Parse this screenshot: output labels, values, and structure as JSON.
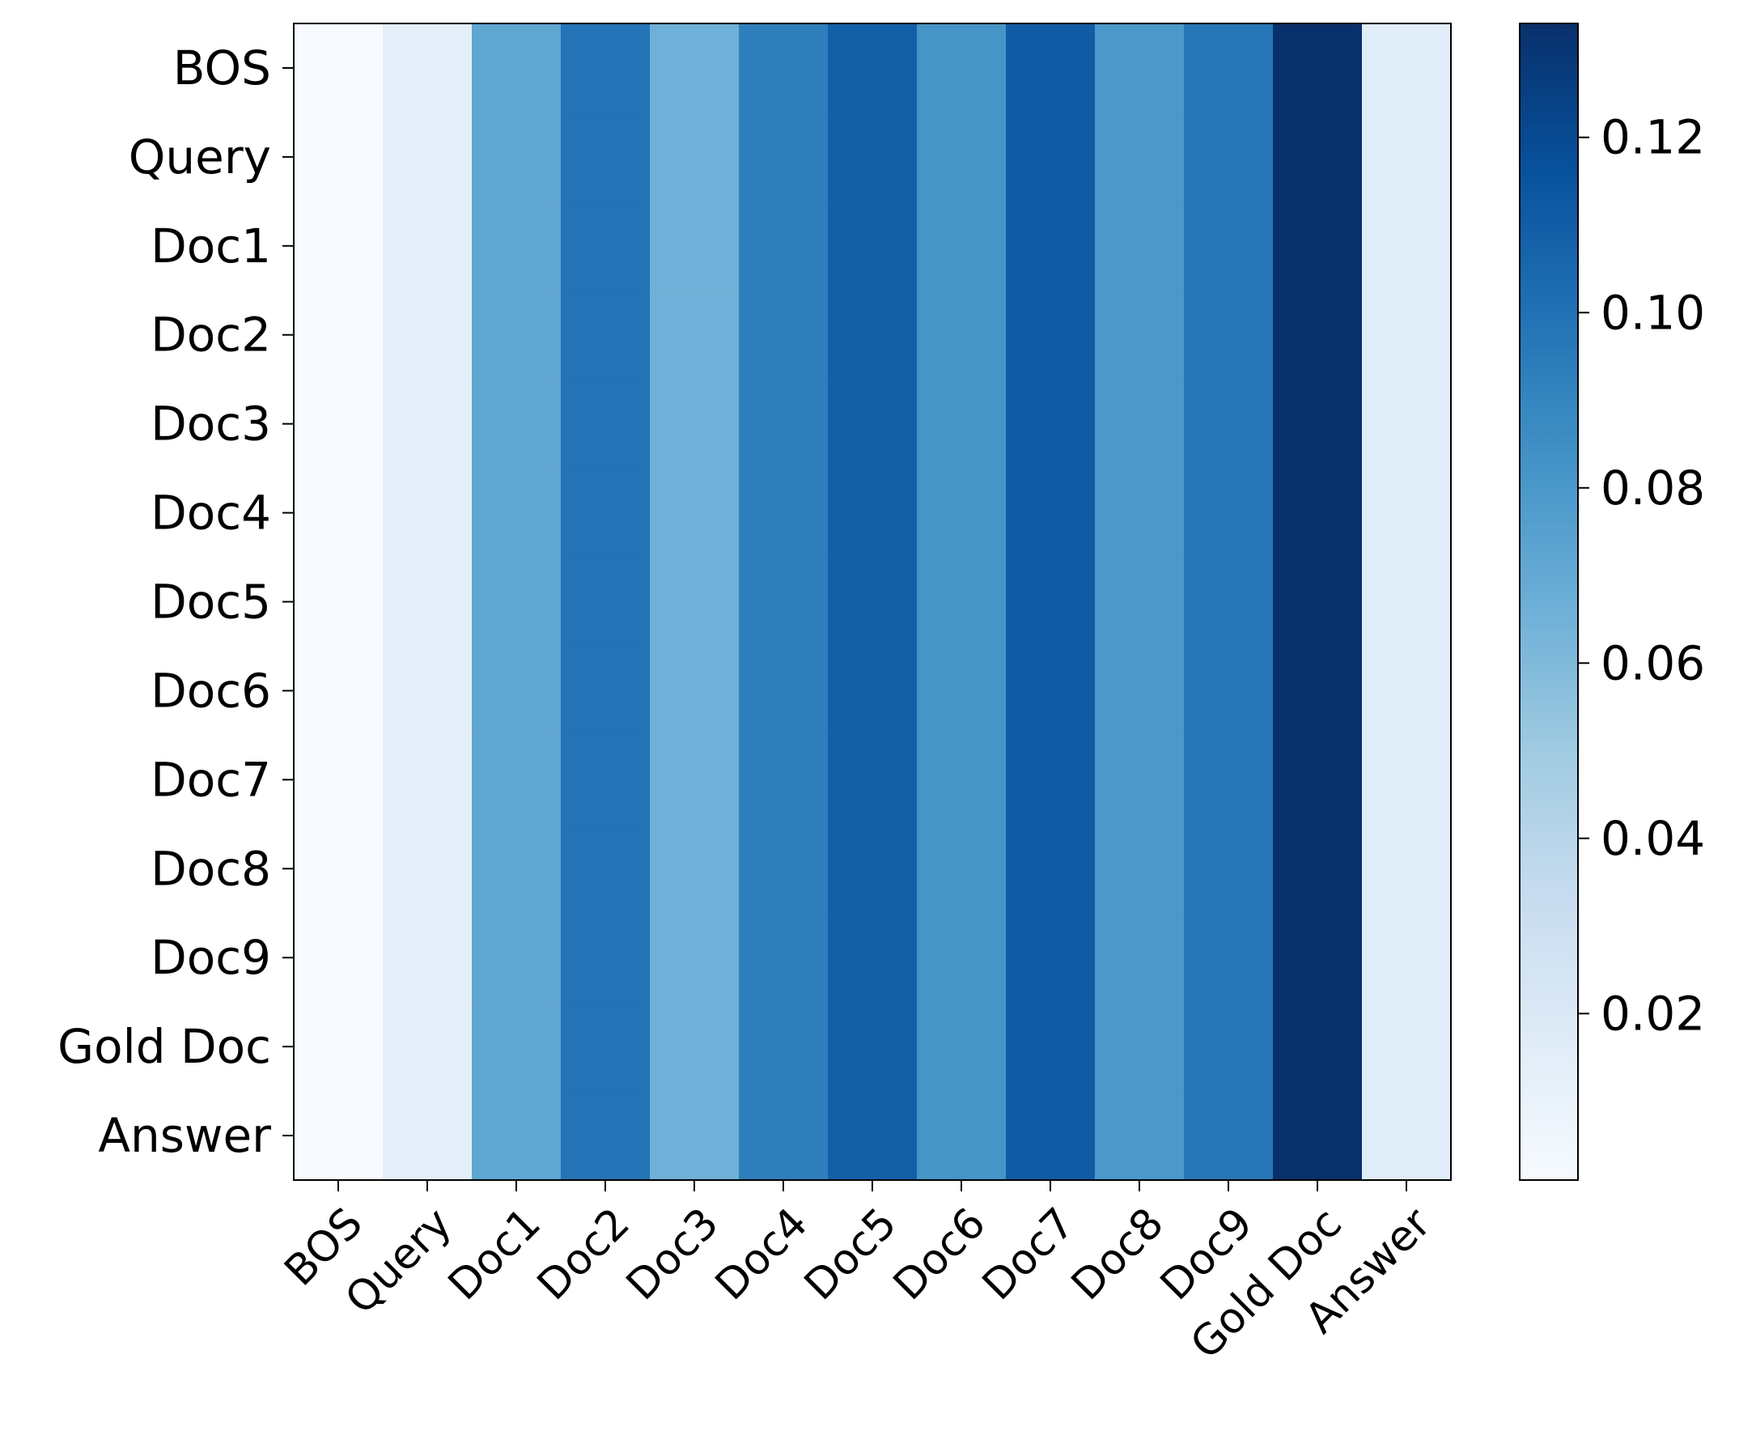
{
  "chart_data": {
    "type": "heatmap",
    "title": "",
    "xlabel": "",
    "ylabel": "",
    "x_categories": [
      "BOS",
      "Query",
      "Doc1",
      "Doc2",
      "Doc3",
      "Doc4",
      "Doc5",
      "Doc6",
      "Doc7",
      "Doc8",
      "Doc9",
      "Gold Doc",
      "Answer"
    ],
    "y_categories": [
      "BOS",
      "Query",
      "Doc1",
      "Doc2",
      "Doc3",
      "Doc4",
      "Doc5",
      "Doc6",
      "Doc7",
      "Doc8",
      "Doc9",
      "Gold Doc",
      "Answer"
    ],
    "column_values": [
      0.001,
      0.014,
      0.072,
      0.099,
      0.066,
      0.093,
      0.109,
      0.082,
      0.111,
      0.08,
      0.097,
      0.133,
      0.016
    ],
    "note_rows_identical": true,
    "colormap": "Blues",
    "colorbar": {
      "range": [
        0.001,
        0.133
      ],
      "ticks": [
        0.02,
        0.04,
        0.06,
        0.08,
        0.1,
        0.12
      ],
      "tick_labels": [
        "0.02",
        "0.04",
        "0.06",
        "0.08",
        "0.10",
        "0.12"
      ]
    },
    "colors": {
      "stops": [
        "#f7fbff",
        "#deebf7",
        "#c6dbef",
        "#9ecae1",
        "#6baed6",
        "#4292c6",
        "#2171b5",
        "#08519c",
        "#08306b"
      ]
    }
  }
}
